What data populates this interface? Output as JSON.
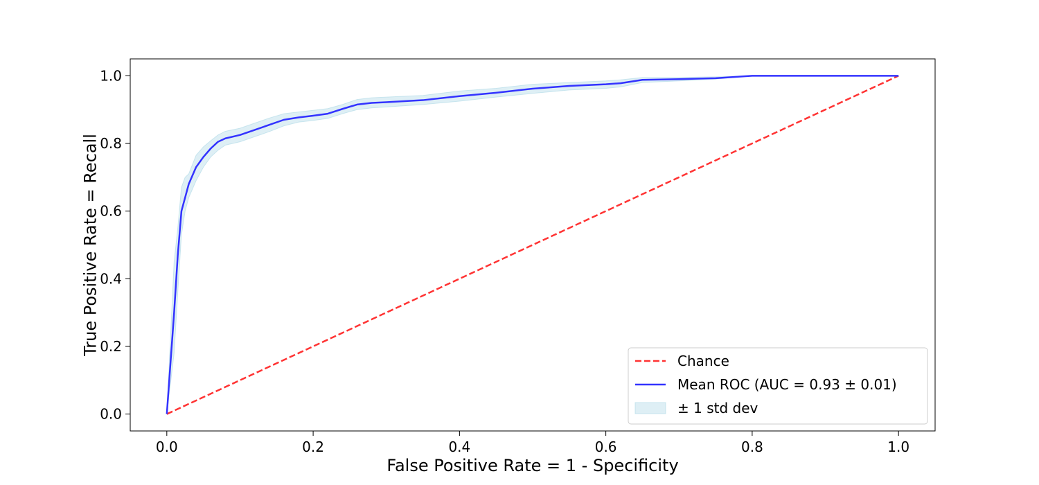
{
  "chart_data": {
    "type": "line",
    "title": "",
    "xlabel": "False Positive Rate = 1 - Specificity",
    "ylabel": "True Positive Rate = Recall",
    "xlim": [
      -0.05,
      1.05
    ],
    "ylim": [
      -0.05,
      1.05
    ],
    "xticks": [
      0.0,
      0.2,
      0.4,
      0.6,
      0.8,
      1.0
    ],
    "xtick_labels": [
      "0.0",
      "0.2",
      "0.4",
      "0.6",
      "0.8",
      "1.0"
    ],
    "yticks": [
      0.0,
      0.2,
      0.4,
      0.6,
      0.8,
      1.0
    ],
    "ytick_labels": [
      "0.0",
      "0.2",
      "0.4",
      "0.6",
      "0.8",
      "1.0"
    ],
    "grid": false,
    "legend_position": "bottom-right",
    "series": [
      {
        "name": "Chance",
        "color": "#ff3333",
        "style": "dashed",
        "x": [
          0.0,
          1.0
        ],
        "y": [
          0.0,
          1.0
        ]
      },
      {
        "name": "Mean ROC (AUC = 0.93 ± 0.01)",
        "color": "#3333ff",
        "style": "solid",
        "x": [
          0.0,
          0.01,
          0.015,
          0.02,
          0.025,
          0.03,
          0.04,
          0.05,
          0.06,
          0.07,
          0.08,
          0.1,
          0.12,
          0.14,
          0.16,
          0.18,
          0.2,
          0.22,
          0.24,
          0.26,
          0.28,
          0.3,
          0.35,
          0.4,
          0.45,
          0.5,
          0.55,
          0.6,
          0.62,
          0.65,
          0.7,
          0.75,
          0.8,
          0.85,
          0.9,
          0.95,
          1.0
        ],
        "y": [
          0.0,
          0.3,
          0.47,
          0.6,
          0.64,
          0.68,
          0.73,
          0.76,
          0.785,
          0.805,
          0.815,
          0.825,
          0.84,
          0.855,
          0.87,
          0.877,
          0.882,
          0.888,
          0.902,
          0.915,
          0.92,
          0.922,
          0.928,
          0.94,
          0.95,
          0.962,
          0.97,
          0.975,
          0.978,
          0.988,
          0.99,
          0.993,
          1.0,
          1.0,
          1.0,
          1.0,
          1.0
        ]
      }
    ],
    "band": {
      "name": "± 1 std dev",
      "color": "#add8e6",
      "opacity": 0.4,
      "x": [
        0.0,
        0.01,
        0.015,
        0.02,
        0.025,
        0.03,
        0.04,
        0.05,
        0.06,
        0.07,
        0.08,
        0.1,
        0.12,
        0.14,
        0.16,
        0.18,
        0.2,
        0.22,
        0.24,
        0.26,
        0.28,
        0.3,
        0.35,
        0.4,
        0.45,
        0.5,
        0.55,
        0.6,
        0.62,
        0.65,
        0.7,
        0.75,
        0.8,
        0.85,
        0.9,
        0.95,
        1.0
      ],
      "lower": [
        0.0,
        0.18,
        0.36,
        0.53,
        0.6,
        0.64,
        0.69,
        0.73,
        0.76,
        0.78,
        0.795,
        0.805,
        0.82,
        0.835,
        0.852,
        0.863,
        0.868,
        0.874,
        0.888,
        0.9,
        0.905,
        0.908,
        0.915,
        0.925,
        0.937,
        0.948,
        0.958,
        0.963,
        0.967,
        0.98,
        0.985,
        0.99,
        1.0,
        1.0,
        1.0,
        1.0,
        1.0
      ],
      "upper": [
        0.0,
        0.45,
        0.55,
        0.67,
        0.7,
        0.71,
        0.765,
        0.79,
        0.808,
        0.825,
        0.836,
        0.845,
        0.86,
        0.875,
        0.888,
        0.893,
        0.898,
        0.903,
        0.915,
        0.93,
        0.935,
        0.937,
        0.942,
        0.955,
        0.963,
        0.975,
        0.98,
        0.985,
        0.988,
        0.995,
        0.995,
        0.997,
        1.0,
        1.0,
        1.0,
        1.0,
        1.0
      ]
    }
  },
  "legend": {
    "items": [
      {
        "label": "Chance",
        "kind": "dashed-line",
        "color": "#ff3333"
      },
      {
        "label": "Mean ROC (AUC = 0.93 ± 0.01)",
        "kind": "solid-line",
        "color": "#3333ff"
      },
      {
        "label": "± 1 std dev",
        "kind": "patch",
        "color": "#add8e6"
      }
    ]
  }
}
